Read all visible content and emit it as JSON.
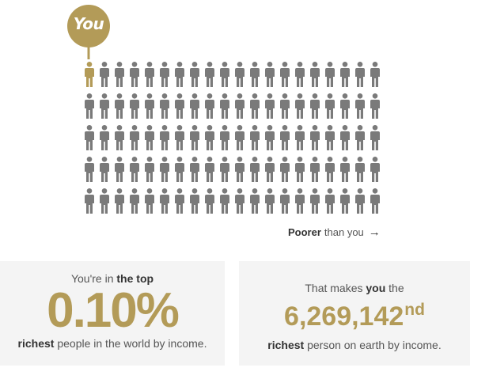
{
  "marker": {
    "label": "You",
    "color": "#b39b58"
  },
  "grid": {
    "rows": 5,
    "columns": 20,
    "highlighted_index": 0,
    "person_color": "#7a7a7a",
    "highlight_color": "#b39b58"
  },
  "poorer": {
    "bold": "Poorer",
    "rest": "than you",
    "arrow_icon": "arrow-right-icon"
  },
  "left_card": {
    "prefix": "You're in",
    "emphasis": "the top",
    "percentage": "0.10%",
    "bottom_bold": "richest",
    "bottom_rest": "people in the world by income."
  },
  "right_card": {
    "prefix": "That makes",
    "emphasis": "you",
    "suffix": "the",
    "rank": "6,269,142",
    "ordinal": "nd",
    "bottom_bold": "richest",
    "bottom_rest": "person on earth by income."
  },
  "colors": {
    "accent": "#b39b58",
    "card_bg": "#f4f4f4"
  }
}
